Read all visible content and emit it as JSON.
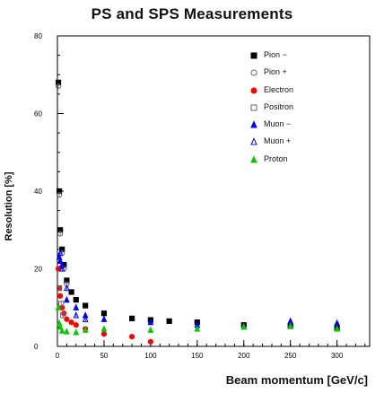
{
  "chart_data": {
    "type": "scatter",
    "title": "PS and SPS Measurements",
    "xlabel": "Beam momentum [GeV/c]",
    "ylabel": "Resolution [%]",
    "xlim": [
      0,
      335
    ],
    "ylim": [
      0,
      80
    ],
    "x_ticks": [
      "0",
      "50",
      "100",
      "150",
      "200",
      "250",
      "300"
    ],
    "y_ticks": [
      "0",
      "20",
      "40",
      "60",
      "80"
    ],
    "grid": false,
    "legend_position": "top-right",
    "series": [
      {
        "name": "Pion −",
        "marker": "square",
        "color": "#000000",
        "x": [
          1,
          2,
          3,
          5,
          7,
          10,
          15,
          20,
          30,
          50,
          80,
          100,
          120,
          150,
          200,
          250,
          300
        ],
        "y": [
          68,
          40,
          30,
          25,
          21,
          17,
          14,
          12,
          10.5,
          8.5,
          7.2,
          6.8,
          6.5,
          6.2,
          5.5,
          5.2,
          4.8
        ]
      },
      {
        "name": "Pion +",
        "marker": "circle-open",
        "color": "#666666",
        "x": [
          1,
          2,
          3,
          5,
          7,
          10
        ],
        "y": [
          67,
          39,
          29,
          24,
          20,
          16
        ]
      },
      {
        "name": "Electron",
        "marker": "circle",
        "color": "#ff0000",
        "x": [
          1,
          2,
          3,
          5,
          7,
          10,
          15,
          20,
          30,
          50,
          80,
          100
        ],
        "y": [
          20,
          15,
          13,
          10,
          8.5,
          7,
          6.2,
          5.5,
          4.5,
          3.2,
          2.5,
          1.2
        ]
      },
      {
        "name": "Positron",
        "marker": "square-open",
        "color": "#666666",
        "x": [
          2,
          4,
          6
        ],
        "y": [
          15,
          11,
          8
        ]
      },
      {
        "name": "Muon −",
        "marker": "triangle",
        "color": "#0000ff",
        "x": [
          2,
          3,
          5,
          10,
          20,
          30,
          50,
          100,
          150,
          200,
          250,
          300
        ],
        "y": [
          23,
          22,
          21,
          12,
          10,
          8,
          7,
          6.2,
          5.5,
          5,
          6.5,
          6
        ]
      },
      {
        "name": "Muon +",
        "marker": "triangle-open",
        "color": "#0000ff",
        "x": [
          3,
          5,
          10,
          20,
          30
        ],
        "y": [
          24,
          20,
          15,
          8,
          7
        ]
      },
      {
        "name": "Proton",
        "marker": "triangle",
        "color": "#00cc00",
        "x": [
          1,
          2,
          3,
          5,
          10,
          20,
          30,
          50,
          100,
          150,
          200,
          250,
          300
        ],
        "y": [
          10,
          6,
          5,
          4,
          3.8,
          3.6,
          4.2,
          4.5,
          4.2,
          4.5,
          5,
          5.2,
          4.5
        ]
      }
    ]
  }
}
